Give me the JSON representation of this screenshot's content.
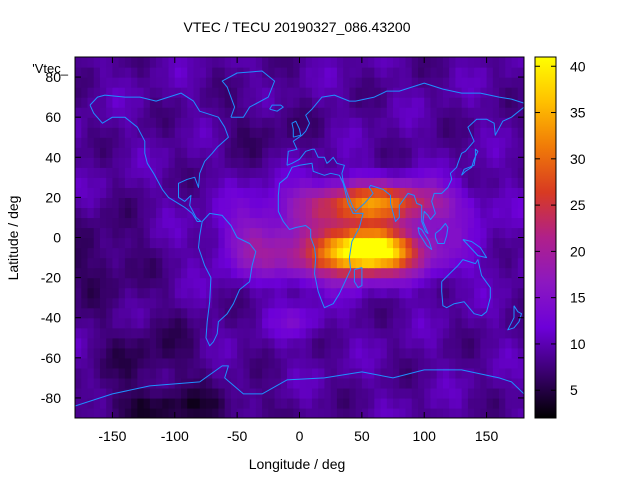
{
  "chart_data": {
    "type": "heatmap",
    "title": "VTEC / TECU 20190327_086.43200",
    "xlabel": "Longitude / deg",
    "ylabel": "Latitude / deg",
    "legend_label": "'Vtec_",
    "xlim": [
      -180,
      180
    ],
    "ylim": [
      -90,
      90
    ],
    "x_ticks": [
      -150,
      -100,
      -50,
      0,
      50,
      100,
      150
    ],
    "y_ticks": [
      -80,
      -60,
      -40,
      -20,
      0,
      20,
      40,
      60,
      80
    ],
    "colorbar": {
      "range": [
        2,
        41
      ],
      "ticks": [
        5,
        10,
        15,
        20,
        25,
        30,
        35,
        40
      ],
      "palette": [
        "#000000",
        "#3a006e",
        "#6d00d8",
        "#8c18c0",
        "#b0208a",
        "#d83a22",
        "#f07a08",
        "#ffc000",
        "#ffff00"
      ]
    },
    "grid_step_deg": 5,
    "background_tecu": 9,
    "features": [
      {
        "name": "equatorial-anomaly-africa",
        "lon": 55,
        "lat": -5,
        "sigma_lon": 22,
        "sigma_lat": 6,
        "amplitude_tecu": 26
      },
      {
        "name": "north-crest",
        "lon": 60,
        "lat": 18,
        "sigma_lon": 40,
        "sigma_lat": 7,
        "amplitude_tecu": 18
      },
      {
        "name": "south-crest",
        "lon": 40,
        "lat": -12,
        "sigma_lon": 45,
        "sigma_lat": 7,
        "amplitude_tecu": 12
      },
      {
        "name": "dayside-band",
        "lon": 45,
        "lat": 2,
        "sigma_lon": 55,
        "sigma_lat": 14,
        "amplitude_tecu": 9
      },
      {
        "name": "western-tail",
        "lon": -40,
        "lat": 0,
        "sigma_lon": 18,
        "sigma_lat": 10,
        "amplitude_tecu": 5
      },
      {
        "name": "south-atlantic-patch",
        "lon": 0,
        "lat": -42,
        "sigma_lon": 15,
        "sigma_lat": 6,
        "amplitude_tecu": 4
      },
      {
        "name": "pacific-low",
        "lon": -160,
        "lat": -10,
        "sigma_lon": 25,
        "sigma_lat": 15,
        "amplitude_tecu": -3
      },
      {
        "name": "south-pacific-low",
        "lon": -120,
        "lat": -60,
        "sigma_lon": 30,
        "sigma_lat": 15,
        "amplitude_tecu": -3
      },
      {
        "name": "antarctic-low",
        "lon": -100,
        "lat": -85,
        "sigma_lon": 50,
        "sigma_lat": 6,
        "amplitude_tecu": -4
      },
      {
        "name": "north-atlantic-low",
        "lon": -30,
        "lat": 55,
        "sigma_lon": 25,
        "sigma_lat": 10,
        "amplitude_tecu": -2
      }
    ],
    "coastlines": {
      "north-america": [
        [
          -168,
          66
        ],
        [
          -162,
          70
        ],
        [
          -156,
          71
        ],
        [
          -140,
          70
        ],
        [
          -128,
          70
        ],
        [
          -115,
          68
        ],
        [
          -95,
          72
        ],
        [
          -85,
          68
        ],
        [
          -80,
          63
        ],
        [
          -75,
          62
        ],
        [
          -65,
          60
        ],
        [
          -60,
          55
        ],
        [
          -57,
          50
        ],
        [
          -66,
          45
        ],
        [
          -70,
          42
        ],
        [
          -76,
          38
        ],
        [
          -80,
          32
        ],
        [
          -81,
          25
        ],
        [
          -84,
          30
        ],
        [
          -90,
          29
        ],
        [
          -97,
          27
        ],
        [
          -97,
          20
        ],
        [
          -92,
          18
        ],
        [
          -87,
          21
        ],
        [
          -88,
          16
        ],
        [
          -83,
          10
        ],
        [
          -79,
          8
        ],
        [
          -82,
          8
        ],
        [
          -86,
          12
        ],
        [
          -92,
          15
        ],
        [
          -105,
          20
        ],
        [
          -110,
          24
        ],
        [
          -117,
          32
        ],
        [
          -122,
          37
        ],
        [
          -124,
          42
        ],
        [
          -124,
          48
        ],
        [
          -130,
          55
        ],
        [
          -140,
          60
        ],
        [
          -150,
          60
        ],
        [
          -158,
          57
        ],
        [
          -165,
          62
        ],
        [
          -168,
          66
        ]
      ],
      "south-america": [
        [
          -78,
          8
        ],
        [
          -72,
          12
        ],
        [
          -62,
          11
        ],
        [
          -55,
          6
        ],
        [
          -50,
          0
        ],
        [
          -40,
          -3
        ],
        [
          -35,
          -7
        ],
        [
          -38,
          -14
        ],
        [
          -40,
          -22
        ],
        [
          -48,
          -26
        ],
        [
          -53,
          -33
        ],
        [
          -58,
          -38
        ],
        [
          -65,
          -42
        ],
        [
          -66,
          -48
        ],
        [
          -69,
          -52
        ],
        [
          -72,
          -54
        ],
        [
          -75,
          -50
        ],
        [
          -74,
          -42
        ],
        [
          -72,
          -32
        ],
        [
          -71,
          -20
        ],
        [
          -76,
          -14
        ],
        [
          -81,
          -5
        ],
        [
          -80,
          1
        ],
        [
          -78,
          8
        ]
      ],
      "greenland": [
        [
          -55,
          60
        ],
        [
          -45,
          60
        ],
        [
          -40,
          65
        ],
        [
          -25,
          70
        ],
        [
          -20,
          78
        ],
        [
          -30,
          83
        ],
        [
          -50,
          82
        ],
        [
          -62,
          78
        ],
        [
          -58,
          75
        ],
        [
          -55,
          70
        ],
        [
          -52,
          65
        ],
        [
          -55,
          60
        ]
      ],
      "africa": [
        [
          -17,
          21
        ],
        [
          -16,
          27
        ],
        [
          -10,
          30
        ],
        [
          -6,
          35
        ],
        [
          0,
          36
        ],
        [
          10,
          37
        ],
        [
          11,
          33
        ],
        [
          20,
          31
        ],
        [
          25,
          32
        ],
        [
          32,
          31
        ],
        [
          35,
          27
        ],
        [
          39,
          17
        ],
        [
          43,
          12
        ],
        [
          51,
          12
        ],
        [
          48,
          5
        ],
        [
          42,
          -2
        ],
        [
          40,
          -10
        ],
        [
          41,
          -16
        ],
        [
          35,
          -24
        ],
        [
          32,
          -28
        ],
        [
          27,
          -33
        ],
        [
          20,
          -35
        ],
        [
          18,
          -32
        ],
        [
          15,
          -27
        ],
        [
          12,
          -18
        ],
        [
          13,
          -10
        ],
        [
          12,
          -5
        ],
        [
          9,
          0
        ],
        [
          9,
          4
        ],
        [
          5,
          6
        ],
        [
          -3,
          5
        ],
        [
          -8,
          4
        ],
        [
          -13,
          8
        ],
        [
          -17,
          13
        ],
        [
          -17,
          21
        ]
      ],
      "eurasia": [
        [
          -10,
          36
        ],
        [
          -9,
          43
        ],
        [
          -2,
          44
        ],
        [
          -5,
          48
        ],
        [
          2,
          51
        ],
        [
          5,
          53
        ],
        [
          8,
          57
        ],
        [
          5,
          61
        ],
        [
          10,
          64
        ],
        [
          18,
          70
        ],
        [
          28,
          71
        ],
        [
          40,
          68
        ],
        [
          45,
          68
        ],
        [
          60,
          70
        ],
        [
          70,
          73
        ],
        [
          80,
          73
        ],
        [
          100,
          77
        ],
        [
          115,
          74
        ],
        [
          130,
          72
        ],
        [
          145,
          72
        ],
        [
          160,
          70
        ],
        [
          170,
          69
        ],
        [
          180,
          67
        ],
        [
          180,
          65
        ],
        [
          170,
          60
        ],
        [
          163,
          58
        ],
        [
          157,
          51
        ],
        [
          156,
          57
        ],
        [
          150,
          59
        ],
        [
          142,
          59
        ],
        [
          135,
          55
        ],
        [
          140,
          48
        ],
        [
          133,
          43
        ],
        [
          130,
          42
        ],
        [
          127,
          37
        ],
        [
          126,
          35
        ],
        [
          121,
          32
        ],
        [
          122,
          29
        ],
        [
          119,
          25
        ],
        [
          114,
          22
        ],
        [
          108,
          22
        ],
        [
          106,
          18
        ],
        [
          109,
          12
        ],
        [
          105,
          9
        ],
        [
          103,
          11
        ],
        [
          100,
          13
        ],
        [
          99,
          8
        ],
        [
          103,
          2
        ],
        [
          101,
          3
        ],
        [
          98,
          8
        ],
        [
          98,
          16
        ],
        [
          94,
          17
        ],
        [
          92,
          21
        ],
        [
          87,
          22
        ],
        [
          80,
          16
        ],
        [
          80,
          10
        ],
        [
          77,
          8
        ],
        [
          73,
          17
        ],
        [
          73,
          21
        ],
        [
          67,
          24
        ],
        [
          62,
          25
        ],
        [
          57,
          26
        ],
        [
          56,
          25
        ],
        [
          59,
          22
        ],
        [
          52,
          17
        ],
        [
          45,
          13
        ],
        [
          43,
          15
        ],
        [
          39,
          21
        ],
        [
          35,
          28
        ],
        [
          34,
          32
        ],
        [
          36,
          36
        ],
        [
          30,
          37
        ],
        [
          27,
          40
        ],
        [
          24,
          38
        ],
        [
          22,
          37
        ],
        [
          20,
          40
        ],
        [
          15,
          40
        ],
        [
          12,
          44
        ],
        [
          10,
          44
        ],
        [
          5,
          43
        ],
        [
          0,
          39
        ],
        [
          -6,
          37
        ],
        [
          -10,
          36
        ]
      ],
      "australia": [
        [
          114,
          -22
        ],
        [
          114,
          -27
        ],
        [
          115,
          -34
        ],
        [
          118,
          -35
        ],
        [
          124,
          -33
        ],
        [
          132,
          -32
        ],
        [
          136,
          -35
        ],
        [
          140,
          -38
        ],
        [
          146,
          -39
        ],
        [
          150,
          -37
        ],
        [
          153,
          -30
        ],
        [
          153,
          -25
        ],
        [
          146,
          -19
        ],
        [
          143,
          -11
        ],
        [
          141,
          -13
        ],
        [
          136,
          -12
        ],
        [
          131,
          -11
        ],
        [
          127,
          -14
        ],
        [
          122,
          -17
        ],
        [
          114,
          -22
        ]
      ],
      "antarctica": [
        [
          -180,
          -84
        ],
        [
          -150,
          -78
        ],
        [
          -120,
          -74
        ],
        [
          -100,
          -73
        ],
        [
          -80,
          -72
        ],
        [
          -62,
          -64
        ],
        [
          -57,
          -64
        ],
        [
          -60,
          -70
        ],
        [
          -45,
          -78
        ],
        [
          -30,
          -78
        ],
        [
          -10,
          -71
        ],
        [
          20,
          -70
        ],
        [
          50,
          -67
        ],
        [
          75,
          -70
        ],
        [
          100,
          -66
        ],
        [
          130,
          -66
        ],
        [
          160,
          -70
        ],
        [
          170,
          -72
        ],
        [
          180,
          -78
        ]
      ],
      "madagascar": [
        [
          44,
          -16
        ],
        [
          50,
          -15
        ],
        [
          50,
          -24
        ],
        [
          47,
          -25
        ],
        [
          44,
          -22
        ],
        [
          44,
          -16
        ]
      ],
      "uk": [
        [
          -5,
          50
        ],
        [
          1,
          51
        ],
        [
          0,
          54
        ],
        [
          -3,
          58
        ],
        [
          -6,
          57
        ],
        [
          -5,
          54
        ],
        [
          -5,
          50
        ]
      ],
      "japan": [
        [
          130,
          31
        ],
        [
          132,
          34
        ],
        [
          136,
          35
        ],
        [
          140,
          36
        ],
        [
          141,
          40
        ],
        [
          141,
          44
        ],
        [
          143,
          43
        ],
        [
          140,
          39
        ],
        [
          138,
          35
        ],
        [
          133,
          33
        ],
        [
          130,
          31
        ]
      ],
      "new-zealand": [
        [
          172,
          -34
        ],
        [
          175,
          -37
        ],
        [
          178,
          -38
        ],
        [
          176,
          -42
        ],
        [
          172,
          -45
        ],
        [
          167,
          -46
        ],
        [
          172,
          -40
        ],
        [
          172,
          -34
        ]
      ],
      "borneo": [
        [
          109,
          2
        ],
        [
          113,
          4
        ],
        [
          117,
          7
        ],
        [
          119,
          5
        ],
        [
          118,
          1
        ],
        [
          116,
          -3
        ],
        [
          111,
          -3
        ],
        [
          109,
          0
        ],
        [
          109,
          2
        ]
      ],
      "sumatra": [
        [
          95,
          5
        ],
        [
          98,
          4
        ],
        [
          104,
          -2
        ],
        [
          106,
          -6
        ],
        [
          102,
          -4
        ],
        [
          96,
          2
        ],
        [
          95,
          5
        ]
      ],
      "new-guinea": [
        [
          131,
          -1
        ],
        [
          138,
          -2
        ],
        [
          145,
          -5
        ],
        [
          150,
          -10
        ],
        [
          143,
          -9
        ],
        [
          137,
          -5
        ],
        [
          131,
          -1
        ]
      ],
      "iceland": [
        [
          -24,
          64
        ],
        [
          -22,
          66
        ],
        [
          -15,
          66
        ],
        [
          -13,
          65
        ],
        [
          -18,
          63
        ],
        [
          -24,
          64
        ]
      ]
    }
  }
}
